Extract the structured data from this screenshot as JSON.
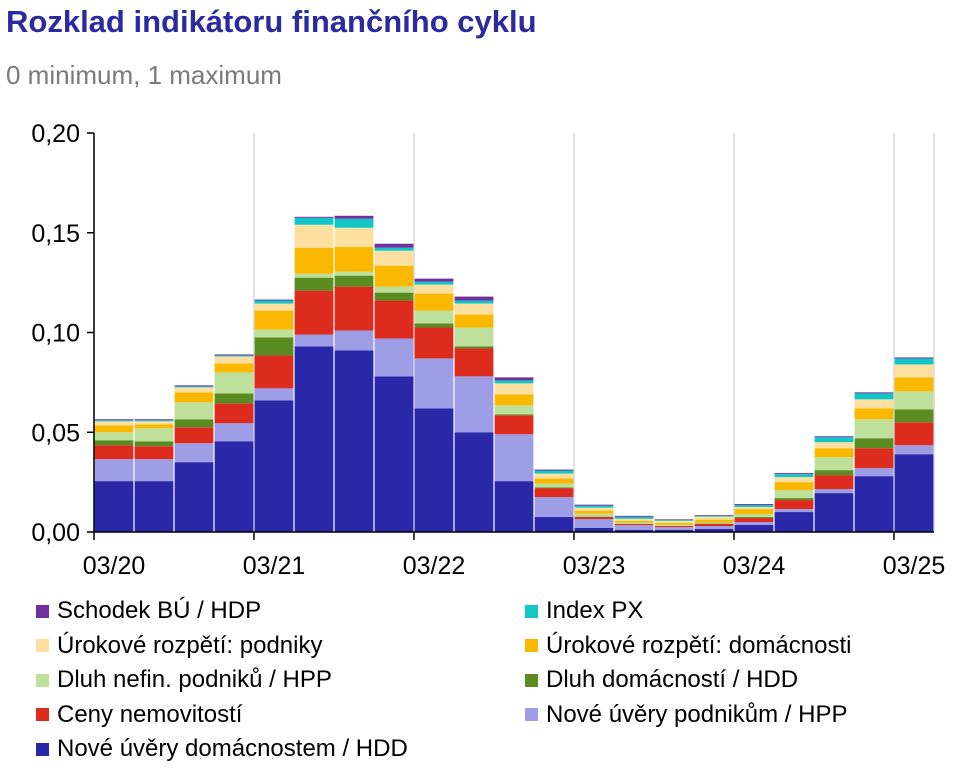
{
  "header": {
    "title": "Rozklad indikátoru finančního cyklu",
    "subtitle": "0 minimum, 1 maximum"
  },
  "chart_data": {
    "type": "bar",
    "stacked": true,
    "title": "Rozklad indikátoru finančního cyklu",
    "subtitle": "0 minimum, 1 maximum",
    "xlabel": "",
    "ylabel": "",
    "ylim": [
      0,
      0.2
    ],
    "yticks": [
      0.0,
      0.05,
      0.1,
      0.15,
      0.2
    ],
    "ytick_labels": [
      "0,00",
      "0,05",
      "0,10",
      "0,15",
      "0,20"
    ],
    "categories": [
      "03/20",
      "06/20",
      "09/20",
      "12/20",
      "03/21",
      "06/21",
      "09/21",
      "12/21",
      "03/22",
      "06/22",
      "09/22",
      "12/22",
      "03/23",
      "06/23",
      "09/23",
      "12/23",
      "03/24",
      "06/24",
      "09/24",
      "12/24",
      "03/25"
    ],
    "xtick_labels": [
      "03/20",
      "03/21",
      "03/22",
      "03/23",
      "03/24",
      "03/25"
    ],
    "xtick_indices": [
      0,
      4,
      8,
      12,
      16,
      20
    ],
    "grid": "vertical",
    "legend_position": "bottom",
    "series": [
      {
        "name": "Nové úvěry domácnostem / HDD",
        "color": "#2828a8",
        "values": [
          0.0255,
          0.0255,
          0.035,
          0.0455,
          0.066,
          0.093,
          0.091,
          0.078,
          0.062,
          0.05,
          0.0255,
          0.0075,
          0.002,
          0.001,
          0.001,
          0.0015,
          0.0035,
          0.01,
          0.0195,
          0.028,
          0.039
        ]
      },
      {
        "name": "Nové úvěry podnikům / HPP",
        "color": "#9e9ee6",
        "values": [
          0.011,
          0.011,
          0.0095,
          0.009,
          0.006,
          0.006,
          0.01,
          0.019,
          0.025,
          0.028,
          0.0235,
          0.01,
          0.0045,
          0.0025,
          0.0015,
          0.0015,
          0.0015,
          0.0015,
          0.002,
          0.004,
          0.0045
        ]
      },
      {
        "name": "Ceny nemovitostí",
        "color": "#dd2c1e",
        "values": [
          0.007,
          0.0065,
          0.008,
          0.01,
          0.0165,
          0.022,
          0.022,
          0.019,
          0.0155,
          0.014,
          0.0095,
          0.0045,
          0.001,
          0.0005,
          0.0005,
          0.001,
          0.002,
          0.0045,
          0.007,
          0.01,
          0.0115
        ]
      },
      {
        "name": "Dluh domácností / HDD",
        "color": "#5a8c22",
        "values": [
          0.0025,
          0.0025,
          0.004,
          0.005,
          0.009,
          0.0065,
          0.0055,
          0.004,
          0.002,
          0.001,
          0.0005,
          0.0003,
          0.0002,
          0.0001,
          0.0001,
          0.0002,
          0.0005,
          0.001,
          0.0025,
          0.005,
          0.0065
        ]
      },
      {
        "name": "Dluh nefin. podniků / HPP",
        "color": "#bfe09b",
        "values": [
          0.004,
          0.0065,
          0.0085,
          0.0105,
          0.004,
          0.002,
          0.002,
          0.003,
          0.0065,
          0.0095,
          0.0045,
          0.002,
          0.0015,
          0.0005,
          0.0005,
          0.0005,
          0.0015,
          0.004,
          0.0065,
          0.0095,
          0.009
        ]
      },
      {
        "name": "Úrokové rozpětí: domácnosti",
        "color": "#fbb800",
        "values": [
          0.0035,
          0.002,
          0.005,
          0.0045,
          0.0095,
          0.013,
          0.0125,
          0.0105,
          0.0085,
          0.0065,
          0.0055,
          0.0025,
          0.0015,
          0.001,
          0.001,
          0.0015,
          0.0025,
          0.004,
          0.0045,
          0.0055,
          0.007
        ]
      },
      {
        "name": "Úrokové rozpětí: podniky",
        "color": "#fde0a0",
        "values": [
          0.002,
          0.0015,
          0.0025,
          0.0035,
          0.0035,
          0.0115,
          0.0095,
          0.0075,
          0.0045,
          0.0055,
          0.0055,
          0.0025,
          0.0015,
          0.001,
          0.001,
          0.0015,
          0.001,
          0.0025,
          0.003,
          0.0045,
          0.0065
        ]
      },
      {
        "name": "Index PX",
        "color": "#11c6c6",
        "values": [
          0.0005,
          0.0005,
          0.0005,
          0.0005,
          0.0015,
          0.0035,
          0.0045,
          0.0015,
          0.0015,
          0.0015,
          0.0015,
          0.0015,
          0.001,
          0.001,
          0.0005,
          0.0005,
          0.001,
          0.0015,
          0.0025,
          0.003,
          0.003
        ]
      },
      {
        "name": "Schodek BÚ / HDP",
        "color": "#7030a0",
        "values": [
          0.0005,
          0.0005,
          0.0005,
          0.0005,
          0.0005,
          0.0005,
          0.0015,
          0.002,
          0.0015,
          0.002,
          0.0015,
          0.0005,
          0.0005,
          0.0005,
          0.0003,
          0.0003,
          0.0005,
          0.0005,
          0.0005,
          0.0005,
          0.0005
        ]
      }
    ],
    "legend_order": [
      "Schodek BÚ / HDP",
      "Index PX",
      "Úrokové rozpětí: podniky",
      "Úrokové rozpětí: domácnosti",
      "Dluh nefin. podniků / HPP",
      "Dluh domácností / HDD",
      "Ceny nemovitostí",
      "Nové úvěry podnikům / HPP",
      "Nové úvěry domácnostem / HDD"
    ]
  }
}
